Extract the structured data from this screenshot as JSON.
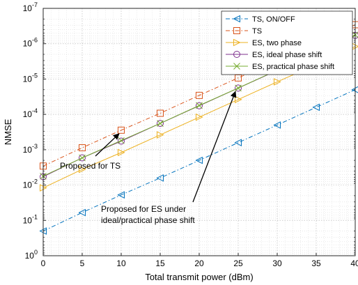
{
  "chart_data": {
    "type": "line",
    "xlabel": "Total transmit power (dBm)",
    "ylabel": "NMSE",
    "xlim": [
      0,
      40
    ],
    "ylim_exp": [
      -7,
      0
    ],
    "yscale": "log",
    "grid": true,
    "minor_grid": true,
    "legend_position": "top-right",
    "x": [
      0,
      5,
      10,
      15,
      20,
      25,
      30,
      35,
      40
    ],
    "x_ticks": [
      "0",
      "5",
      "10",
      "15",
      "20",
      "25",
      "30",
      "35",
      "40"
    ],
    "y_tick_exponents": [
      "0",
      "-1",
      "-2",
      "-3",
      "-4",
      "-5",
      "-6",
      "-7"
    ],
    "y_tick_base": "10",
    "series": [
      {
        "name": "TS, ON/OFF",
        "color": "#0072BD",
        "line": "dashdot",
        "marker": "triangle-left",
        "values": [
          0.2,
          0.06,
          0.019,
          0.0063,
          0.002,
          0.00063,
          0.0002,
          6.3e-05,
          2e-05
        ]
      },
      {
        "name": "TS",
        "color": "#D95319",
        "line": "dashdot",
        "marker": "square",
        "values": [
          0.0029,
          0.00088,
          0.00028,
          9.3e-05,
          2.9e-05,
          9.3e-06,
          2.9e-06,
          9.3e-07,
          2.9e-07
        ]
      },
      {
        "name": "ES, two phase",
        "color": "#EDB120",
        "line": "solid",
        "marker": "triangle-right",
        "values": [
          0.012,
          0.0036,
          0.0012,
          0.00038,
          0.00012,
          3.8e-05,
          1.2e-05,
          3.9e-06,
          1.2e-06
        ]
      },
      {
        "name": "ES, ideal phase shift",
        "color": "#7E2F8E",
        "line": "solid",
        "marker": "circle",
        "values": [
          0.0058,
          0.0017,
          0.00057,
          0.00018,
          5.7e-05,
          1.8e-05,
          5.7e-06,
          1.8e-06,
          5.8e-07
        ]
      },
      {
        "name": "ES, practical phase shift",
        "color": "#77AC30",
        "line": "solid",
        "marker": "x",
        "values": [
          0.0056,
          0.0017,
          0.00055,
          0.00018,
          5.6e-05,
          1.8e-05,
          5.6e-06,
          1.8e-06,
          5.6e-07
        ]
      }
    ],
    "annotations": [
      {
        "lines": [
          "Proposed for TS"
        ],
        "x": 10,
        "y": 0.00028
      },
      {
        "lines": [
          "Proposed for ES under",
          "ideal/practical phase shift"
        ],
        "x": 25,
        "y": 1.8e-05
      }
    ]
  }
}
